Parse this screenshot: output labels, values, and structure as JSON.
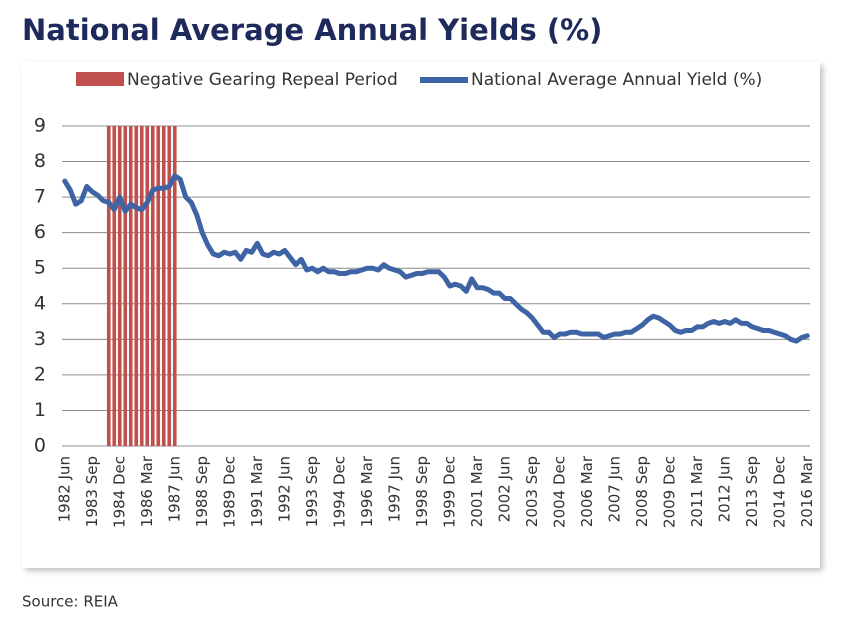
{
  "chart_data": {
    "type": "bar-line",
    "title": "National Average Annual Yields (%)",
    "source": "Source: REIA",
    "categories": [
      "1982 Jun",
      null,
      null,
      null,
      null,
      "1983 Sep",
      null,
      null,
      null,
      null,
      "1984 Dec",
      null,
      null,
      null,
      null,
      "1986 Mar",
      null,
      null,
      null,
      null,
      "1987 Jun",
      null,
      null,
      null,
      null,
      "1988 Sep",
      null,
      null,
      null,
      null,
      "1989 Dec",
      null,
      null,
      null,
      null,
      "1991 Mar",
      null,
      null,
      null,
      null,
      "1992 Jun",
      null,
      null,
      null,
      null,
      "1993 Sep",
      null,
      null,
      null,
      null,
      "1994 Dec",
      null,
      null,
      null,
      null,
      "1996 Mar",
      null,
      null,
      null,
      null,
      "1997 Jun",
      null,
      null,
      null,
      null,
      "1998 Sep",
      null,
      null,
      null,
      null,
      "1999 Dec",
      null,
      null,
      null,
      null,
      "2001 Mar",
      null,
      null,
      null,
      null,
      "2002 Jun",
      null,
      null,
      null,
      null,
      "2003 Sep",
      null,
      null,
      null,
      null,
      "2004 Dec",
      null,
      null,
      null,
      null,
      "2006 Mar",
      null,
      null,
      null,
      null,
      "2007 Jun",
      null,
      null,
      null,
      null,
      "2008 Sep",
      null,
      null,
      null,
      null,
      "2009 Dec",
      null,
      null,
      null,
      null,
      "2011 Mar",
      null,
      null,
      null,
      null,
      "2012 Jun",
      null,
      null,
      null,
      null,
      "2013 Sep",
      null,
      null,
      null,
      null,
      "2014 Dec",
      null,
      null,
      null,
      null,
      "2016 Mar"
    ],
    "series": [
      {
        "name": "Negative Gearing Repeal Period",
        "type": "bar",
        "color": "#c0504d",
        "values": [
          null,
          null,
          null,
          null,
          null,
          null,
          null,
          null,
          9,
          9,
          9,
          9,
          9,
          9,
          9,
          9,
          9,
          9,
          9,
          9,
          9,
          null,
          null,
          null,
          null,
          null,
          null,
          null,
          null,
          null,
          null,
          null,
          null,
          null,
          null,
          null,
          null,
          null,
          null,
          null,
          null,
          null,
          null,
          null,
          null,
          null,
          null,
          null,
          null,
          null,
          null,
          null,
          null,
          null,
          null,
          null,
          null,
          null,
          null,
          null,
          null,
          null,
          null,
          null,
          null,
          null,
          null,
          null,
          null,
          null,
          null,
          null,
          null,
          null,
          null,
          null,
          null,
          null,
          null,
          null,
          null,
          null,
          null,
          null,
          null,
          null,
          null,
          null,
          null,
          null,
          null,
          null,
          null,
          null,
          null,
          null,
          null,
          null,
          null,
          null,
          null,
          null,
          null,
          null,
          null,
          null,
          null,
          null,
          null,
          null,
          null,
          null,
          null,
          null,
          null,
          null,
          null,
          null,
          null,
          null,
          null,
          null,
          null,
          null,
          null,
          null,
          null,
          null,
          null,
          null,
          null,
          null,
          null,
          null,
          null,
          null
        ]
      },
      {
        "name": "National Average Annual Yield (%)",
        "type": "line",
        "color": "#3e64a6",
        "values": [
          7.45,
          7.2,
          6.8,
          6.9,
          7.3,
          7.15,
          7.05,
          6.9,
          6.85,
          6.65,
          7.0,
          6.6,
          6.8,
          6.7,
          6.65,
          6.85,
          7.2,
          7.25,
          7.25,
          7.3,
          7.6,
          7.5,
          7.0,
          6.85,
          6.5,
          6.0,
          5.65,
          5.4,
          5.35,
          5.45,
          5.4,
          5.45,
          5.25,
          5.5,
          5.45,
          5.7,
          5.4,
          5.35,
          5.45,
          5.4,
          5.5,
          5.3,
          5.1,
          5.25,
          4.95,
          5.0,
          4.9,
          5.0,
          4.9,
          4.9,
          4.85,
          4.85,
          4.9,
          4.9,
          4.95,
          5.0,
          5.0,
          4.95,
          5.1,
          5.0,
          4.95,
          4.9,
          4.75,
          4.8,
          4.85,
          4.85,
          4.9,
          4.9,
          4.9,
          4.75,
          4.5,
          4.55,
          4.5,
          4.35,
          4.7,
          4.45,
          4.45,
          4.4,
          4.3,
          4.3,
          4.15,
          4.15,
          4.0,
          3.85,
          3.75,
          3.6,
          3.4,
          3.2,
          3.2,
          3.05,
          3.15,
          3.15,
          3.2,
          3.2,
          3.15,
          3.15,
          3.15,
          3.15,
          3.05,
          3.1,
          3.15,
          3.15,
          3.2,
          3.2,
          3.3,
          3.4,
          3.55,
          3.65,
          3.6,
          3.5,
          3.4,
          3.25,
          3.2,
          3.25,
          3.25,
          3.35,
          3.35,
          3.45,
          3.5,
          3.45,
          3.5,
          3.45,
          3.55,
          3.45,
          3.45,
          3.35,
          3.3,
          3.25,
          3.25,
          3.2,
          3.15,
          3.1,
          3.0,
          2.95,
          3.05,
          3.1
        ]
      }
    ],
    "ylim": [
      0,
      9
    ],
    "yticks": [
      0,
      1,
      2,
      3,
      4,
      5,
      6,
      7,
      8,
      9
    ],
    "grid": true,
    "legend": "top"
  }
}
